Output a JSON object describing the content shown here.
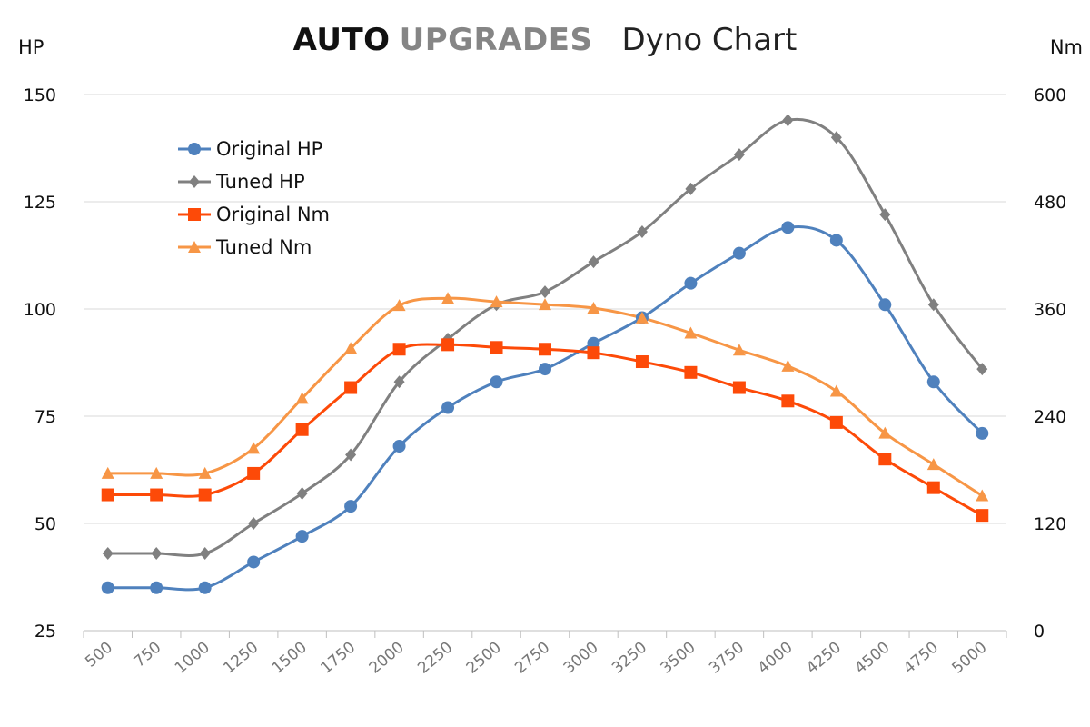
{
  "header": {
    "brand_part1": "AUTO",
    "brand_part2": "UPGRADES",
    "subtitle": "Dyno Chart"
  },
  "chart_data": {
    "type": "line",
    "title": "AUTO UPGRADES Dyno Chart",
    "xlabel": "",
    "y_left_label": "HP",
    "y_right_label": "Nm",
    "y_left_lim": [
      25,
      150
    ],
    "y_left_ticks": [
      25,
      50,
      75,
      100,
      125,
      150
    ],
    "y_right_lim": [
      0,
      600
    ],
    "y_right_ticks": [
      0,
      120,
      240,
      360,
      480,
      600
    ],
    "grid": true,
    "legend_position": "top-left",
    "categories": [
      500,
      750,
      1000,
      1250,
      1500,
      1750,
      2000,
      2250,
      2500,
      2750,
      3000,
      3250,
      3500,
      3750,
      4000,
      4250,
      4500,
      4750,
      5000
    ],
    "series": [
      {
        "name": "Original HP",
        "axis": "left",
        "color": "#4f81bd",
        "marker": "circle",
        "values": [
          35,
          35,
          35,
          41,
          47,
          54,
          68,
          77,
          83,
          86,
          92,
          98,
          106,
          113,
          119,
          116,
          101,
          83,
          71
        ]
      },
      {
        "name": "Tuned HP",
        "axis": "left",
        "color": "#808080",
        "marker": "diamond",
        "values": [
          43,
          43,
          43,
          50,
          57,
          66,
          83,
          93,
          101,
          104,
          111,
          118,
          128,
          136,
          144,
          140,
          122,
          101,
          86
        ]
      },
      {
        "name": "Original Nm",
        "axis": "right",
        "color": "#fd4a08",
        "marker": "square",
        "values": [
          152,
          152,
          152,
          176,
          225,
          272,
          315,
          320,
          317,
          315,
          311,
          301,
          289,
          272,
          257,
          233,
          192,
          160,
          129
        ]
      },
      {
        "name": "Tuned Nm",
        "axis": "right",
        "color": "#f79646",
        "marker": "triangle",
        "values": [
          176,
          176,
          176,
          204,
          260,
          316,
          364,
          372,
          368,
          365,
          361,
          350,
          333,
          314,
          296,
          268,
          221,
          186,
          151
        ]
      }
    ]
  }
}
